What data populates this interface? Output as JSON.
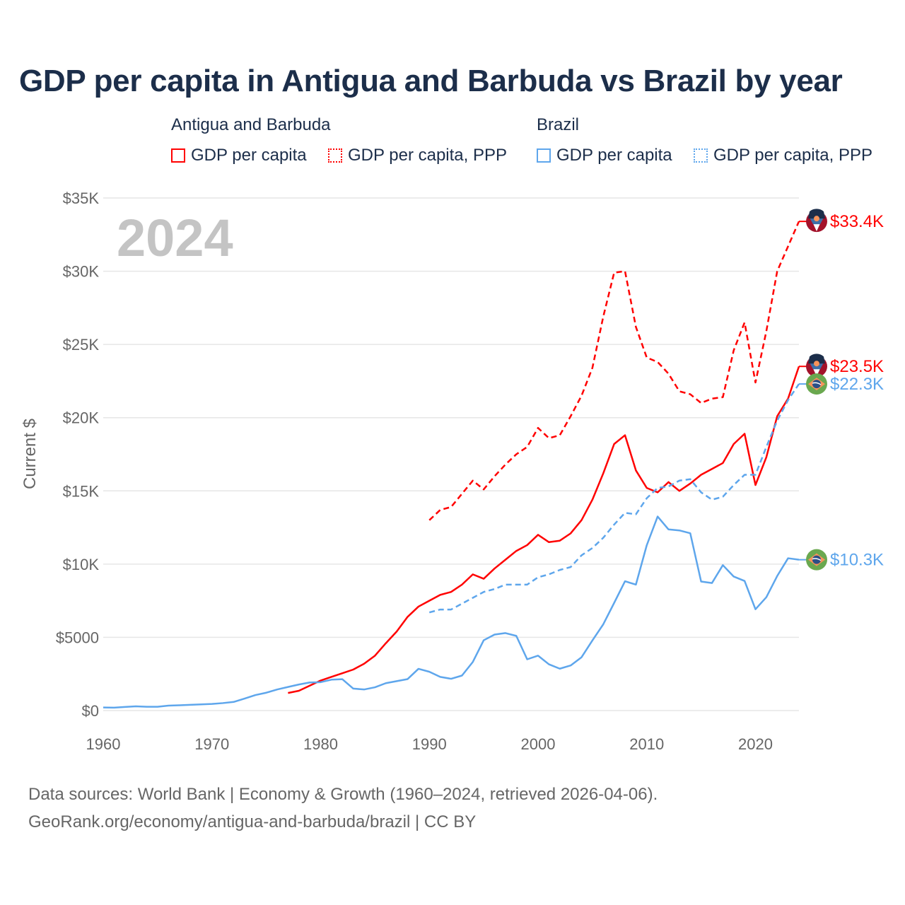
{
  "title": "GDP per capita in Antigua and Barbuda vs Brazil by year",
  "legend": {
    "groups": [
      {
        "name": "Antigua and Barbuda",
        "items": [
          "GDP per capita",
          "GDP per capita, PPP"
        ],
        "color": "#ff0000"
      },
      {
        "name": "Brazil",
        "items": [
          "GDP per capita",
          "GDP per capita, PPP"
        ],
        "color": "#5ea6ec"
      }
    ]
  },
  "year_label": "2024",
  "footer": {
    "line1": "Data sources: World Bank | Economy & Growth (1960–2024, retrieved 2026-04-06).",
    "line2": "GeoRank.org/economy/antigua-and-barbuda/brazil | CC BY"
  },
  "chart_data": {
    "type": "line",
    "title": "GDP per capita in Antigua and Barbuda vs Brazil by year",
    "xlabel": "",
    "ylabel": "Current $",
    "xlim": [
      1960,
      2024
    ],
    "ylim": [
      0,
      35000
    ],
    "x_ticks": [
      1960,
      1970,
      1980,
      1990,
      2000,
      2010,
      2020
    ],
    "x_tick_labels": [
      "1960",
      "1970",
      "1980",
      "1990",
      "2000",
      "2010",
      "2020"
    ],
    "y_ticks": [
      0,
      5000,
      10000,
      15000,
      20000,
      25000,
      30000,
      35000
    ],
    "y_tick_labels": [
      "$0",
      "$5000",
      "$10K",
      "$15K",
      "$20K",
      "$25K",
      "$30K",
      "$35K"
    ],
    "grid": true,
    "legend_position": "top",
    "series": [
      {
        "name": "Antigua and Barbuda GDP per capita",
        "color": "#ff0000",
        "dash": "solid",
        "end_label": "$23.5K",
        "flag": "antigua",
        "start": 1977,
        "values": [
          1200,
          1350,
          1700,
          2050,
          2300,
          2550,
          2800,
          3200,
          3750,
          4600,
          5400,
          6400,
          7100,
          7500,
          7900,
          8100,
          8600,
          9300,
          9000,
          9700,
          10300,
          10900,
          11300,
          12000,
          11500,
          11600,
          12100,
          13000,
          14400,
          16200,
          18200,
          18800,
          16400,
          15200,
          14900,
          15600,
          15000,
          15500,
          16100,
          16500,
          16900,
          18200,
          18900,
          15400,
          17300,
          20100,
          21300,
          23500
        ]
      },
      {
        "name": "Antigua and Barbuda GDP per capita, PPP",
        "color": "#ff0000",
        "dash": "dashed",
        "end_label": "$33.4K",
        "flag": "antigua",
        "start": 1990,
        "values": [
          13000,
          13700,
          13900,
          14800,
          15700,
          15100,
          16000,
          16800,
          17500,
          18000,
          19300,
          18600,
          18800,
          20100,
          21500,
          23400,
          26900,
          29900,
          30000,
          26200,
          24100,
          23800,
          23000,
          21800,
          21600,
          21000,
          21300,
          21400,
          24600,
          26500,
          22400,
          25900,
          30000,
          31700,
          33400
        ]
      },
      {
        "name": "Brazil GDP per capita",
        "color": "#5ea6ec",
        "dash": "solid",
        "end_label": "$10.3K",
        "flag": "brazil",
        "start": 1960,
        "values": [
          210,
          200,
          250,
          290,
          260,
          260,
          340,
          360,
          390,
          420,
          450,
          510,
          590,
          820,
          1060,
          1220,
          1440,
          1610,
          1780,
          1920,
          1940,
          2110,
          2140,
          1500,
          1440,
          1590,
          1870,
          2010,
          2150,
          2850,
          2650,
          2300,
          2170,
          2390,
          3320,
          4800,
          5190,
          5290,
          5100,
          3500,
          3750,
          3160,
          2860,
          3080,
          3640,
          4790,
          5890,
          7350,
          8830,
          8600,
          11290,
          13250,
          12370,
          12300,
          12110,
          8810,
          8710,
          9930,
          9150,
          8850,
          6920,
          7740,
          9190,
          10400,
          10300
        ]
      },
      {
        "name": "Brazil GDP per capita, PPP",
        "color": "#5ea6ec",
        "dash": "dashed",
        "end_label": "$22.3K",
        "flag": "brazil",
        "start": 1990,
        "values": [
          6700,
          6900,
          6900,
          7300,
          7700,
          8100,
          8300,
          8600,
          8600,
          8600,
          9100,
          9300,
          9600,
          9800,
          10600,
          11100,
          11800,
          12700,
          13500,
          13400,
          14500,
          15200,
          15300,
          15700,
          15800,
          14900,
          14400,
          14600,
          15400,
          16100,
          16100,
          18000,
          19800,
          21200,
          22300
        ]
      }
    ]
  }
}
